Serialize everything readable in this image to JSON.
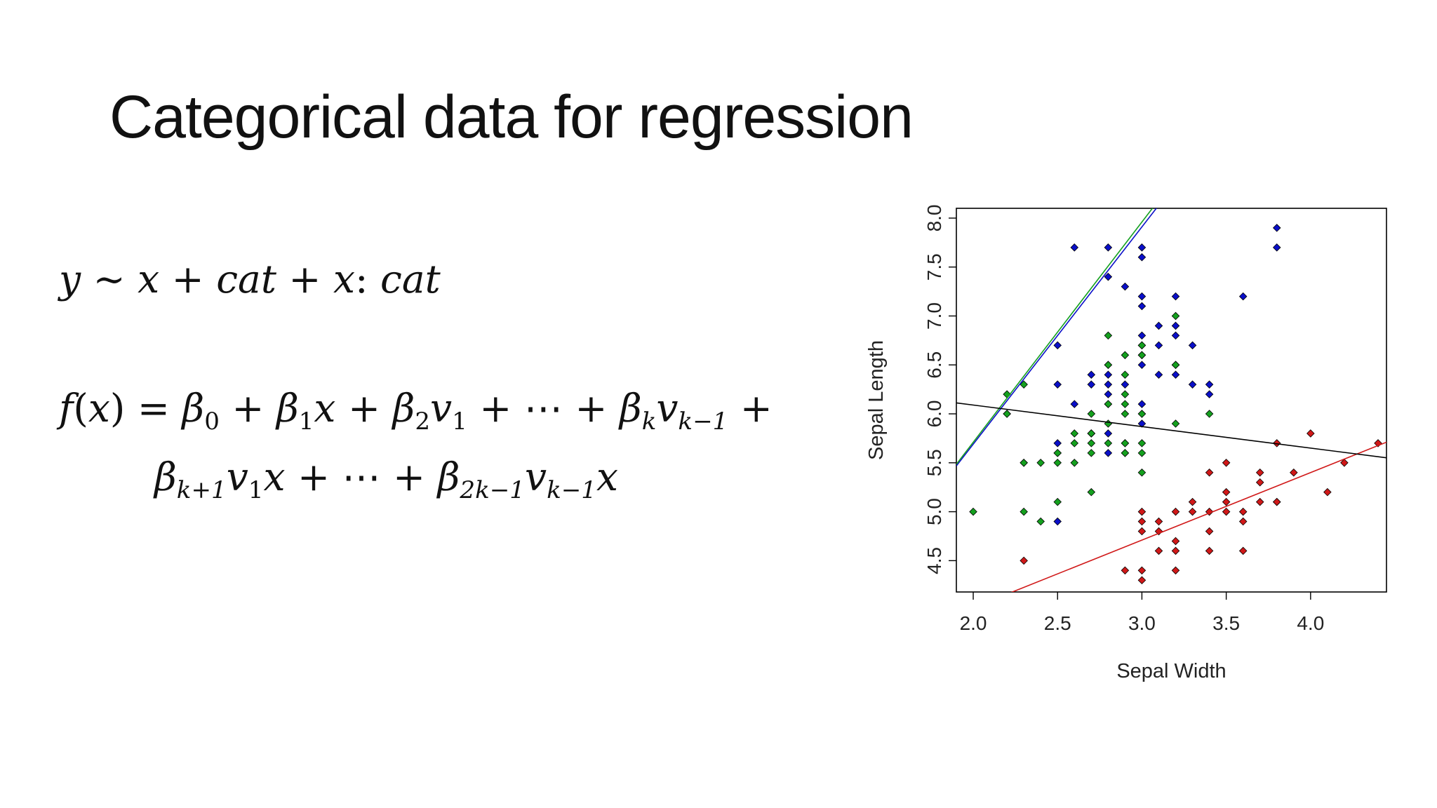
{
  "slide": {
    "title": "Categorical data for regression"
  },
  "formulas": {
    "model": {
      "y": "y",
      "tilde": "~",
      "x1": "x",
      "plus1": "+",
      "cat1": "cat",
      "plus2": "+",
      "x2": "x",
      "colon": ":",
      "cat2": "cat"
    },
    "line1": {
      "f": "f",
      "lp": "(",
      "x": "x",
      "rp": ")",
      "eq": "=",
      "b0": "β",
      "b0sub": "0",
      "p1": "+",
      "b1": "β",
      "b1sub": "1",
      "x1": "x",
      "p2": "+",
      "b2": "β",
      "b2sub": "2",
      "v1": "v",
      "v1sub": "1",
      "p3": "+",
      "dots": "⋯",
      "p4": "+",
      "bk": "β",
      "bksub": "k",
      "vk": "v",
      "vksub": "k−1",
      "p5": "+"
    },
    "line2": {
      "bk1": "β",
      "bk1sub": "k+1",
      "v1": "v",
      "v1sub": "1",
      "x1": "x",
      "p1": "+",
      "dots": "⋯",
      "p2": "+",
      "b2k": "β",
      "b2ksub": "2k−1",
      "vk": "v",
      "vksub": "k−1",
      "x2": "x"
    }
  },
  "chart_data": {
    "type": "scatter",
    "title": "",
    "xlabel": "Sepal Width",
    "ylabel": "Sepal Length",
    "xlim": [
      1.9,
      4.45
    ],
    "ylim": [
      4.18,
      8.1
    ],
    "xticks": [
      "2.0",
      "2.5",
      "3.0",
      "3.5",
      "4.0"
    ],
    "yticks": [
      "4.5",
      "5.0",
      "5.5",
      "6.0",
      "6.5",
      "7.0",
      "7.5",
      "8.0"
    ],
    "grid": false,
    "legend": "none",
    "colors": {
      "blue": "#0a0fc8",
      "green": "#14a01e",
      "red": "#d01818",
      "overall": "#000000"
    },
    "series": [
      {
        "color": "blue",
        "points": [
          [
            2.6,
            7.7
          ],
          [
            2.8,
            7.7
          ],
          [
            3.0,
            7.7
          ],
          [
            3.0,
            7.6
          ],
          [
            3.8,
            7.9
          ],
          [
            3.8,
            7.7
          ],
          [
            2.8,
            7.4
          ],
          [
            2.9,
            7.3
          ],
          [
            3.0,
            7.2
          ],
          [
            3.2,
            7.2
          ],
          [
            3.6,
            7.2
          ],
          [
            3.0,
            7.1
          ],
          [
            3.1,
            6.9
          ],
          [
            3.2,
            6.9
          ],
          [
            3.0,
            6.8
          ],
          [
            3.2,
            6.8
          ],
          [
            2.5,
            6.7
          ],
          [
            3.0,
            6.7
          ],
          [
            3.1,
            6.7
          ],
          [
            3.3,
            6.7
          ],
          [
            3.0,
            6.6
          ],
          [
            2.8,
            6.5
          ],
          [
            3.0,
            6.5
          ],
          [
            3.2,
            6.5
          ],
          [
            2.7,
            6.4
          ],
          [
            2.8,
            6.4
          ],
          [
            3.1,
            6.4
          ],
          [
            3.2,
            6.4
          ],
          [
            2.5,
            6.3
          ],
          [
            2.7,
            6.3
          ],
          [
            2.8,
            6.3
          ],
          [
            2.9,
            6.3
          ],
          [
            3.3,
            6.3
          ],
          [
            3.4,
            6.3
          ],
          [
            2.8,
            6.2
          ],
          [
            3.4,
            6.2
          ],
          [
            2.6,
            6.1
          ],
          [
            2.8,
            6.1
          ],
          [
            3.0,
            6.1
          ],
          [
            2.2,
            6.0
          ],
          [
            3.0,
            6.0
          ],
          [
            2.8,
            5.8
          ],
          [
            2.7,
            5.8
          ],
          [
            3.0,
            5.9
          ],
          [
            2.5,
            5.7
          ],
          [
            2.8,
            5.6
          ],
          [
            2.5,
            5.6
          ],
          [
            2.9,
            5.6
          ],
          [
            2.5,
            4.9
          ],
          [
            2.7,
            5.8
          ]
        ],
        "fit": {
          "intercept": 1.25,
          "slope": 2.22
        }
      },
      {
        "color": "green",
        "points": [
          [
            2.2,
            6.2
          ],
          [
            2.3,
            6.3
          ],
          [
            2.2,
            6.0
          ],
          [
            2.0,
            5.0
          ],
          [
            2.3,
            5.0
          ],
          [
            2.4,
            4.9
          ],
          [
            2.3,
            5.5
          ],
          [
            2.4,
            5.5
          ],
          [
            2.5,
            5.5
          ],
          [
            2.5,
            5.6
          ],
          [
            2.6,
            5.5
          ],
          [
            2.6,
            5.8
          ],
          [
            2.7,
            5.8
          ],
          [
            2.8,
            5.7
          ],
          [
            2.9,
            5.7
          ],
          [
            3.0,
            5.7
          ],
          [
            2.7,
            5.6
          ],
          [
            2.9,
            5.6
          ],
          [
            3.0,
            5.6
          ],
          [
            2.8,
            6.8
          ],
          [
            3.2,
            7.0
          ],
          [
            2.9,
            6.6
          ],
          [
            3.0,
            6.7
          ],
          [
            3.2,
            6.5
          ],
          [
            3.0,
            6.6
          ],
          [
            2.8,
            6.5
          ],
          [
            2.9,
            6.4
          ],
          [
            2.9,
            6.2
          ],
          [
            2.8,
            6.1
          ],
          [
            2.9,
            6.1
          ],
          [
            3.0,
            6.0
          ],
          [
            3.4,
            6.0
          ],
          [
            2.9,
            6.0
          ],
          [
            3.2,
            5.9
          ],
          [
            2.7,
            6.0
          ],
          [
            2.5,
            5.1
          ],
          [
            2.7,
            5.2
          ],
          [
            3.0,
            5.4
          ],
          [
            2.6,
            5.7
          ],
          [
            2.7,
            5.7
          ],
          [
            2.9,
            5.7
          ],
          [
            2.8,
            5.9
          ],
          [
            2.3,
            5.5
          ]
        ],
        "fit": {
          "intercept": 1.21,
          "slope": 2.25
        }
      },
      {
        "color": "red",
        "points": [
          [
            3.0,
            5.0
          ],
          [
            3.0,
            4.9
          ],
          [
            3.0,
            4.8
          ],
          [
            3.1,
            4.9
          ],
          [
            3.1,
            4.8
          ],
          [
            3.2,
            5.0
          ],
          [
            3.2,
            4.7
          ],
          [
            3.2,
            4.6
          ],
          [
            3.1,
            4.6
          ],
          [
            3.0,
            4.4
          ],
          [
            2.9,
            4.4
          ],
          [
            3.0,
            4.3
          ],
          [
            3.2,
            4.4
          ],
          [
            2.3,
            4.5
          ],
          [
            3.3,
            5.0
          ],
          [
            3.3,
            5.1
          ],
          [
            3.4,
            5.0
          ],
          [
            3.4,
            5.4
          ],
          [
            3.4,
            4.8
          ],
          [
            3.4,
            4.6
          ],
          [
            3.5,
            5.0
          ],
          [
            3.5,
            5.1
          ],
          [
            3.5,
            5.2
          ],
          [
            3.5,
            5.5
          ],
          [
            3.6,
            4.6
          ],
          [
            3.6,
            4.9
          ],
          [
            3.6,
            5.0
          ],
          [
            3.7,
            5.1
          ],
          [
            3.7,
            5.3
          ],
          [
            3.7,
            5.4
          ],
          [
            3.8,
            5.1
          ],
          [
            3.8,
            5.7
          ],
          [
            3.9,
            5.4
          ],
          [
            4.0,
            5.8
          ],
          [
            4.1,
            5.2
          ],
          [
            4.2,
            5.5
          ],
          [
            4.4,
            5.7
          ],
          [
            3.8,
            5.1
          ]
        ],
        "fit": {
          "intercept": 2.64,
          "slope": 0.69
        }
      }
    ],
    "overall_fit": {
      "color": "overall",
      "intercept": 6.53,
      "slope": -0.22
    }
  }
}
